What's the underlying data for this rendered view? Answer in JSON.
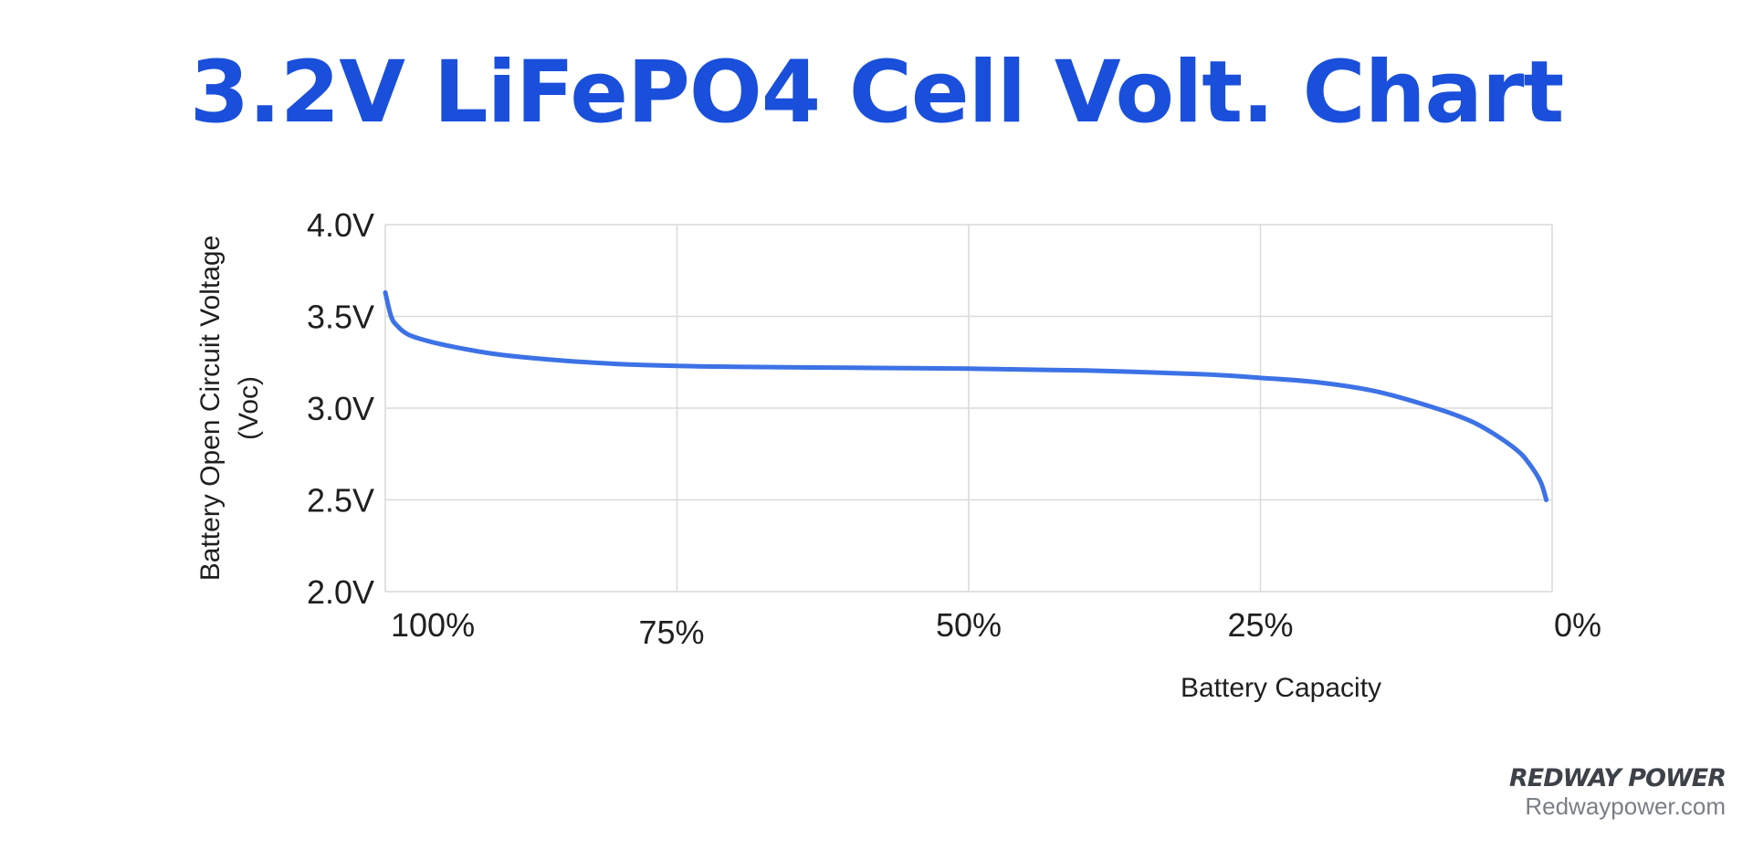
{
  "chart_data": {
    "type": "line",
    "title": "3.2V LiFePO4 Cell Volt. Chart",
    "xlabel": "Battery Capacity",
    "ylabel": [
      "Battery Open Circuit Voltage",
      "(Voc)"
    ],
    "x_ticks": [
      "100%",
      "75%",
      "50%",
      "25%",
      "0%"
    ],
    "x_tick_values": [
      100,
      75,
      50,
      25,
      0
    ],
    "y_ticks": [
      "2.0V",
      "2.5V",
      "3.0V",
      "3.5V",
      "4.0V"
    ],
    "y_tick_values": [
      2.0,
      2.5,
      3.0,
      3.5,
      4.0
    ],
    "xlim": [
      100,
      0
    ],
    "ylim": [
      2.0,
      4.0
    ],
    "grid": true,
    "series": [
      {
        "color": "#3d72e6",
        "x": [
          100,
          99.5,
          99,
          98,
          96,
          93,
          90,
          85,
          80,
          75,
          70,
          60,
          50,
          40,
          30,
          25,
          20,
          15,
          10,
          7,
          5,
          3,
          2,
          1,
          0.5
        ],
        "y": [
          3.63,
          3.5,
          3.45,
          3.4,
          3.36,
          3.32,
          3.29,
          3.26,
          3.24,
          3.23,
          3.225,
          3.22,
          3.215,
          3.205,
          3.185,
          3.165,
          3.14,
          3.09,
          3.0,
          2.93,
          2.86,
          2.77,
          2.7,
          2.6,
          2.5
        ]
      }
    ]
  },
  "brand": {
    "name": "REDWAY POWER",
    "url": "Redwaypower.com"
  }
}
